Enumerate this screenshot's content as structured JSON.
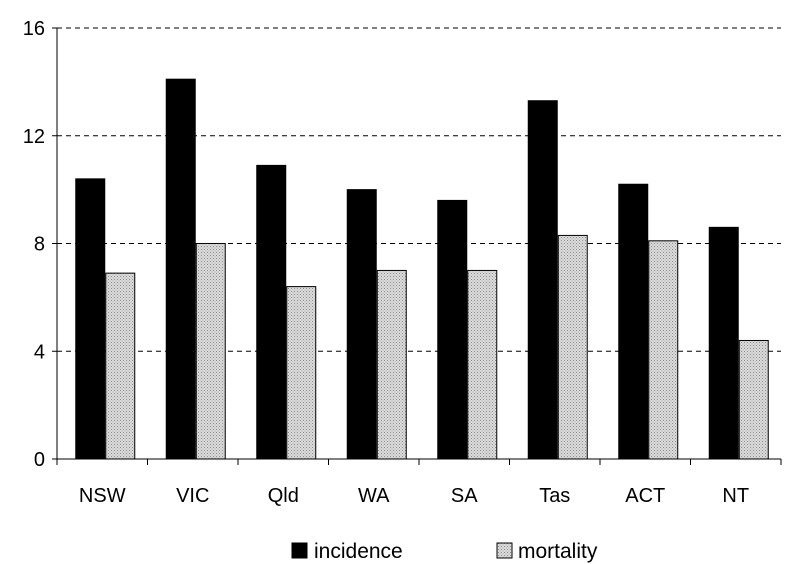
{
  "chart_data": {
    "type": "bar",
    "categories": [
      "NSW",
      "VIC",
      "Qld",
      "WA",
      "SA",
      "Tas",
      "ACT",
      "NT"
    ],
    "series": [
      {
        "name": "incidence",
        "values": [
          10.4,
          14.1,
          10.9,
          10.0,
          9.6,
          13.3,
          10.2,
          8.6
        ],
        "color": "#000000"
      },
      {
        "name": "mortality",
        "values": [
          6.9,
          8.0,
          6.4,
          7.0,
          7.0,
          8.3,
          8.1,
          4.4
        ],
        "color": "#d4d4d4",
        "pattern": "dotted"
      }
    ],
    "ylim": [
      0,
      16
    ],
    "yticks": [
      "0",
      "4",
      "8",
      "12",
      "16"
    ],
    "grid": true,
    "legend_position": "bottom"
  }
}
